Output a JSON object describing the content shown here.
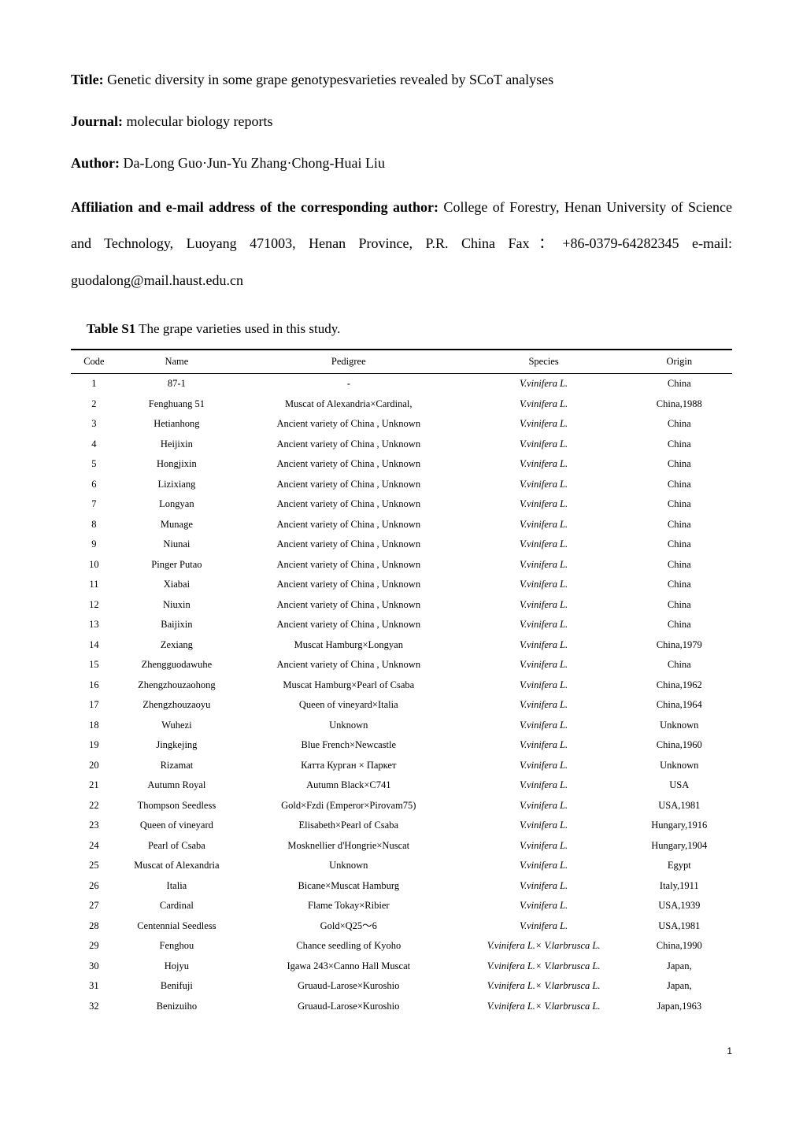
{
  "header": {
    "title_label": "Title:",
    "title_text": " Genetic diversity in some grape genotypesvarieties revealed by SCoT analyses",
    "journal_label": "Journal:",
    "journal_text": " molecular biology reports",
    "author_label": "Author:",
    "author_text": " Da-Long Guo·Jun-Yu Zhang·Chong-Huai Liu",
    "affil_label": "Affiliation and e-mail address of the corresponding author:",
    "affil_text": " College of Forestry, Henan University of Science and Technology, Luoyang 471003, Henan Province, P.R. China Fax：+86-0379-64282345  e-mail: guodalong@mail.haust.edu.cn"
  },
  "table": {
    "caption_label": "Table S1",
    "caption_text": " The grape varieties used in this study.",
    "columns": [
      "Code",
      "Name",
      "Pedigree",
      "Species",
      "Origin"
    ],
    "rows": [
      {
        "code": "1",
        "name": "87-1",
        "pedigree": "-",
        "species": "V.vinifera L.",
        "origin": "China"
      },
      {
        "code": "2",
        "name": "Fenghuang 51",
        "pedigree": "Muscat of Alexandria×Cardinal,",
        "species": "V.vinifera L.",
        "origin": "China,1988"
      },
      {
        "code": "3",
        "name": "Hetianhong",
        "pedigree": "Ancient variety of China , Unknown",
        "species": "V.vinifera L.",
        "origin": "China"
      },
      {
        "code": "4",
        "name": "Heijixin",
        "pedigree": "Ancient variety of China , Unknown",
        "species": "V.vinifera L.",
        "origin": "China"
      },
      {
        "code": "5",
        "name": "Hongjixin",
        "pedigree": "Ancient variety of China , Unknown",
        "species": "V.vinifera L.",
        "origin": "China"
      },
      {
        "code": "6",
        "name": "Lizixiang",
        "pedigree": "Ancient variety of China , Unknown",
        "species": "V.vinifera L.",
        "origin": "China"
      },
      {
        "code": "7",
        "name": "Longyan",
        "pedigree": "Ancient variety of China , Unknown",
        "species": "V.vinifera L.",
        "origin": "China"
      },
      {
        "code": "8",
        "name": "Munage",
        "pedigree": "Ancient variety of China , Unknown",
        "species": "V.vinifera L.",
        "origin": "China"
      },
      {
        "code": "9",
        "name": "Niunai",
        "pedigree": "Ancient variety of China , Unknown",
        "species": "V.vinifera L.",
        "origin": "China"
      },
      {
        "code": "10",
        "name": "Pinger Putao",
        "pedigree": "Ancient variety of China , Unknown",
        "species": "V.vinifera L.",
        "origin": "China"
      },
      {
        "code": "11",
        "name": "Xiabai",
        "pedigree": "Ancient variety of China , Unknown",
        "species": "V.vinifera L.",
        "origin": "China"
      },
      {
        "code": "12",
        "name": "Niuxin",
        "pedigree": "Ancient variety of China , Unknown",
        "species": "V.vinifera L.",
        "origin": "China"
      },
      {
        "code": "13",
        "name": "Baijixin",
        "pedigree": "Ancient variety of China , Unknown",
        "species": "V.vinifera L.",
        "origin": "China"
      },
      {
        "code": "14",
        "name": "Zexiang",
        "pedigree": "Muscat Hamburg×Longyan",
        "species": "V.vinifera L.",
        "origin": "China,1979"
      },
      {
        "code": "15",
        "name": "Zhengguodawuhe",
        "pedigree": "Ancient variety of China , Unknown",
        "species": "V.vinifera L.",
        "origin": "China"
      },
      {
        "code": "16",
        "name": "Zhengzhouzaohong",
        "pedigree": "Muscat Hamburg×Pearl of Csaba",
        "species": "V.vinifera L.",
        "origin": "China,1962"
      },
      {
        "code": "17",
        "name": "Zhengzhouzaoyu",
        "pedigree": "Queen of vineyard×Italia",
        "species": "V.vinifera L.",
        "origin": "China,1964"
      },
      {
        "code": "18",
        "name": "Wuhezi",
        "pedigree": "Unknown",
        "species": "V.vinifera L.",
        "origin": "Unknown"
      },
      {
        "code": "19",
        "name": "Jingkejing",
        "pedigree": "Blue French×Newcastle",
        "species": "V.vinifera L.",
        "origin": "China,1960"
      },
      {
        "code": "20",
        "name": "Rizamat",
        "pedigree": "Катта Курган × Паркет",
        "species": "V.vinifera L.",
        "origin": "Unknown"
      },
      {
        "code": "21",
        "name": "Autumn Royal",
        "pedigree": "Autumn Black×C741",
        "species": "V.vinifera L.",
        "origin": "USA"
      },
      {
        "code": "22",
        "name": "Thompson Seedless",
        "pedigree": "Gold×Fzdi (Emperor×Pirovam75)",
        "species": "V.vinifera L.",
        "origin": "USA,1981"
      },
      {
        "code": "23",
        "name": "Queen of vineyard",
        "pedigree": "Elisabeth×Pearl of Csaba",
        "species": "V.vinifera L.",
        "origin": "Hungary,1916"
      },
      {
        "code": "24",
        "name": "Pearl of Csaba",
        "pedigree": "Mosknellier d'Hongrie×Nuscat",
        "species": "V.vinifera L.",
        "origin": "Hungary,1904"
      },
      {
        "code": "25",
        "name": "Muscat of Alexandria",
        "pedigree": "Unknown",
        "species": "V.vinifera L.",
        "origin": "Egypt"
      },
      {
        "code": "26",
        "name": "Italia",
        "pedigree": "Bicane×Muscat Hamburg",
        "species": "V.vinifera L.",
        "origin": "Italy,1911"
      },
      {
        "code": "27",
        "name": "Cardinal",
        "pedigree": "Flame Tokay×Ribier",
        "species": "V.vinifera L.",
        "origin": "USA,1939"
      },
      {
        "code": "28",
        "name": "Centennial Seedless",
        "pedigree": "Gold×Q25～6",
        "species": "V.vinifera L.",
        "origin": "USA,1981"
      },
      {
        "code": "29",
        "name": "Fenghou",
        "pedigree": "Chance seedling of Kyoho",
        "species": "V.vinifera L.× V.larbrusca L.",
        "origin": "China,1990"
      },
      {
        "code": "30",
        "name": "Hojyu",
        "pedigree": "Igawa 243×Canno Hall Muscat",
        "species": "V.vinifera L.× V.larbrusca L.",
        "origin": "Japan,"
      },
      {
        "code": "31",
        "name": "Benifuji",
        "pedigree": "Gruaud-Larose×Kuroshio",
        "species": "V.vinifera L.× V.larbrusca L.",
        "origin": "Japan,"
      },
      {
        "code": "32",
        "name": "Benizuiho",
        "pedigree": "Gruaud-Larose×Kuroshio",
        "species": "V.vinifera L.× V.larbrusca L.",
        "origin": "Japan,1963"
      }
    ]
  },
  "page_number": "1"
}
